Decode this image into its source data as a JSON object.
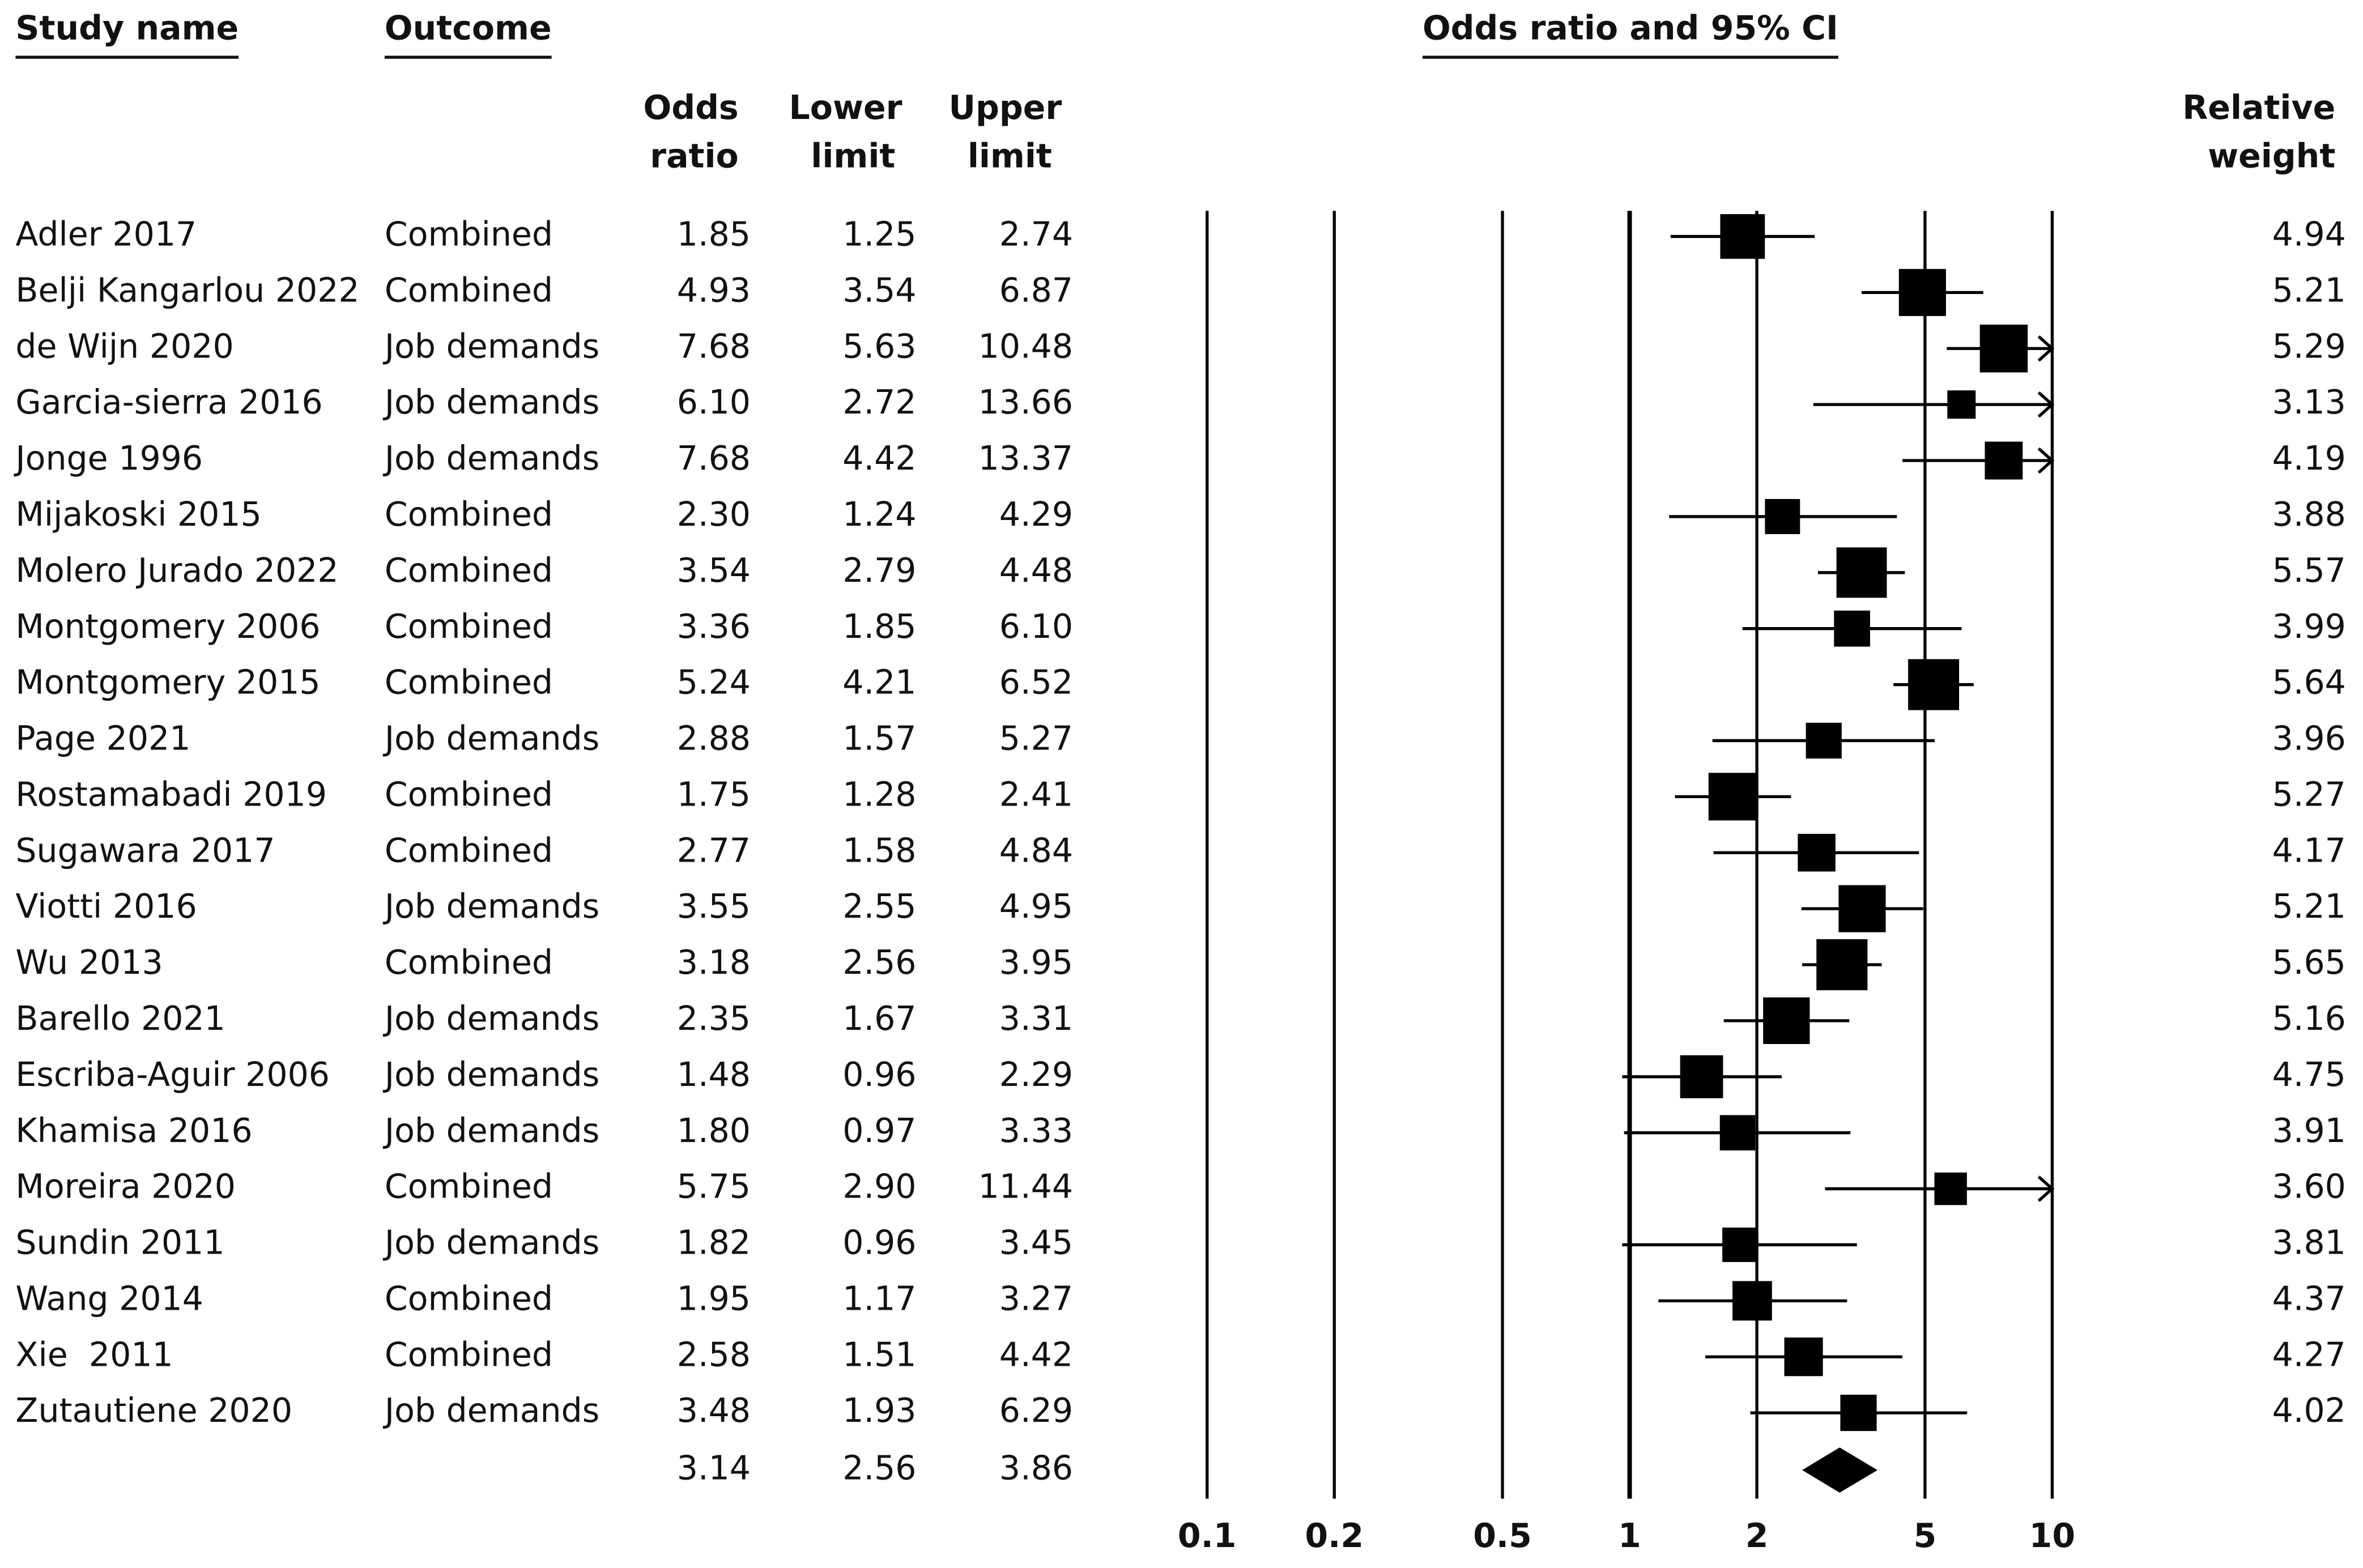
{
  "chart_data": {
    "type": "forest",
    "title": "Odds ratio and 95% CI",
    "headers": {
      "study": "Study name",
      "outcome": "Outcome",
      "odds_ratio": [
        "Odds",
        "ratio"
      ],
      "lower": [
        "Lower",
        "limit"
      ],
      "upper": [
        "Upper",
        "limit"
      ],
      "weight": [
        "Relative",
        "weight"
      ]
    },
    "categories": [
      "Adler 2017",
      "Belji Kangarlou 2022",
      "de Wijn 2020",
      "Garcia-sierra 2016",
      "Jonge 1996",
      "Mijakoski 2015",
      "Molero Jurado 2022",
      "Montgomery 2006",
      "Montgomery 2015",
      "Page 2021",
      "Rostamabadi 2019",
      "Sugawara 2017",
      "Viotti 2016",
      "Wu 2013",
      "Barello 2021",
      "Escriba-Aguir 2006",
      "Khamisa 2016",
      "Moreira 2020",
      "Sundin 2011",
      "Wang 2014",
      "Xie  2011",
      "Zutautiene 2020"
    ],
    "outcomes": [
      "Combined",
      "Combined",
      "Job demands",
      "Job demands",
      "Job demands",
      "Combined",
      "Combined",
      "Combined",
      "Combined",
      "Job demands",
      "Combined",
      "Combined",
      "Job demands",
      "Combined",
      "Job demands",
      "Job demands",
      "Job demands",
      "Combined",
      "Job demands",
      "Combined",
      "Combined",
      "Job demands"
    ],
    "odds_ratio": [
      1.85,
      4.93,
      7.68,
      {
        "value": 6.1,
        "label": "6.10"
      },
      7.68,
      {
        "value": 2.3,
        "label": "2.30"
      },
      3.54,
      3.36,
      5.24,
      2.88,
      1.75,
      2.77,
      3.55,
      3.18,
      2.35,
      1.48,
      {
        "value": 1.8,
        "label": "1.80"
      },
      5.75,
      1.82,
      1.95,
      2.58,
      3.48
    ],
    "lower": [
      1.25,
      3.54,
      5.63,
      2.72,
      4.42,
      1.24,
      2.79,
      1.85,
      4.21,
      1.57,
      1.28,
      1.58,
      2.55,
      2.56,
      1.67,
      0.96,
      0.97,
      {
        "value": 2.9,
        "label": "2.90"
      },
      0.96,
      1.17,
      1.51,
      1.93
    ],
    "upper": [
      2.74,
      6.87,
      10.48,
      13.66,
      13.37,
      4.29,
      4.48,
      {
        "value": 6.1,
        "label": "6.10"
      },
      6.52,
      5.27,
      2.41,
      4.84,
      4.95,
      3.95,
      3.31,
      2.29,
      3.33,
      11.44,
      3.45,
      3.27,
      4.42,
      6.29
    ],
    "weight": [
      4.94,
      5.21,
      5.29,
      3.13,
      4.19,
      3.88,
      5.57,
      3.99,
      5.64,
      3.96,
      5.27,
      4.17,
      5.21,
      5.65,
      5.16,
      4.75,
      3.91,
      {
        "value": 3.6,
        "label": "3.60"
      },
      3.81,
      4.37,
      4.27,
      4.02
    ],
    "summary": {
      "odds_ratio": 3.14,
      "lower": 2.56,
      "upper": 3.86
    },
    "xlim": [
      0.1,
      10
    ],
    "xticks": [
      0.1,
      0.2,
      0.5,
      1,
      2,
      5,
      10
    ],
    "log_x": true,
    "color": "#000000"
  }
}
